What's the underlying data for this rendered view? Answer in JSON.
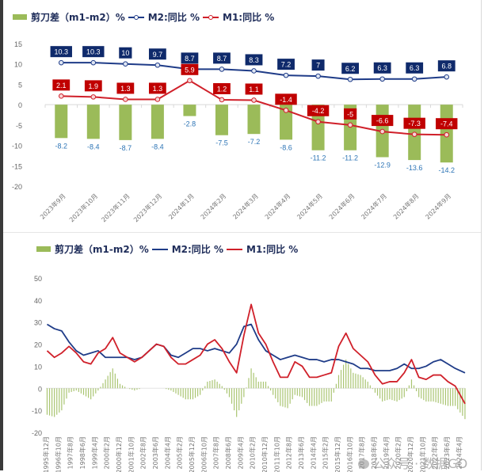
{
  "chart_data": [
    {
      "type": "bar",
      "title": "",
      "xlabel": "",
      "ylabel": "",
      "ylim": [
        -20,
        15
      ],
      "yticks": [
        15,
        10,
        5,
        0,
        -5,
        -10,
        -15,
        -20
      ],
      "grid": false,
      "legend_position": "top-left",
      "categories": [
        "2023年9月",
        "2023年10月",
        "2023年11月",
        "2023年12月",
        "2024年1月",
        "2024年2月",
        "2024年3月",
        "2024年4月",
        "2024年5月",
        "2024年6月",
        "2024年7月",
        "2024年8月",
        "2024年9月"
      ],
      "series": [
        {
          "name": "剪刀差（m1-m2）%",
          "kind": "bar",
          "color": "#9bbb59",
          "label_color": "#2e75b6",
          "values": [
            -8.2,
            -8.4,
            -8.7,
            -8.4,
            -2.8,
            -7.5,
            -7.2,
            -8.6,
            -11.2,
            -11.2,
            -12.9,
            -13.6,
            -14.2
          ],
          "labels": [
            "-8.2",
            "-8.4",
            "-8.7",
            "-8.4",
            "-2.8",
            "-7.5",
            "-7.2",
            "-8.6",
            "-11.2",
            "-11.2",
            "-12.9",
            "-13.6",
            "-14.2"
          ]
        },
        {
          "name": "M2:同比 %",
          "kind": "line",
          "color": "#1f3c88",
          "label_bg": "#0f2a6b",
          "values": [
            10.3,
            10.3,
            10.0,
            9.7,
            8.7,
            8.7,
            8.3,
            7.2,
            7.0,
            6.2,
            6.3,
            6.3,
            6.8
          ],
          "labels": [
            "10.3",
            "10.3",
            "10",
            "9.7",
            "8.7",
            "8.7",
            "8.3",
            "7.2",
            "7",
            "6.2",
            "6.3",
            "6.3",
            "6.8"
          ]
        },
        {
          "name": "M1:同比 %",
          "kind": "line",
          "color": "#d0202a",
          "label_bg": "#c00000",
          "values": [
            2.1,
            1.9,
            1.3,
            1.3,
            5.9,
            1.2,
            1.1,
            -1.4,
            -4.2,
            -5.0,
            -6.6,
            -7.3,
            -7.4
          ],
          "labels": [
            "2.1",
            "1.9",
            "1.3",
            "1.3",
            "5.9",
            "1.2",
            "1.1",
            "-1.4",
            "-4.2",
            "-5",
            "-6.6",
            "-7.3",
            "-7.4"
          ]
        }
      ]
    },
    {
      "type": "line",
      "title": "",
      "xlabel": "",
      "ylabel": "",
      "ylim": [
        -20,
        50
      ],
      "yticks": [
        50,
        40,
        30,
        20,
        10,
        0,
        -10,
        -20
      ],
      "grid": false,
      "legend_position": "top-left",
      "x_tick_labels": [
        "1995年12月",
        "1996年10月",
        "1997年8月",
        "1998年6月",
        "1999年4月",
        "2000年2月",
        "2000年12月",
        "2001年10月",
        "2002年8月",
        "2003年6月",
        "2004年4月",
        "2005年2月",
        "2005年12月",
        "2006年10月",
        "2007年8月",
        "2008年6月",
        "2009年4月",
        "2010年2月",
        "2010年12月",
        "2011年10月",
        "2012年8月",
        "2013年6月",
        "2014年4月",
        "2015年2月",
        "2015年12月",
        "2016年10月",
        "2017年8月",
        "2018年6月",
        "2019年4月",
        "2020年2月",
        "2020年12月",
        "2021年10月",
        "2022年8月",
        "2023年6月",
        "2024年4月"
      ],
      "x_range": [
        1995.92,
        2024.67
      ],
      "x": [
        1996.0,
        1996.5,
        1997.0,
        1997.5,
        1998.0,
        1998.5,
        1999.0,
        1999.5,
        2000.0,
        2000.5,
        2001.0,
        2001.5,
        2002.0,
        2002.5,
        2003.0,
        2003.5,
        2004.0,
        2004.5,
        2005.0,
        2005.5,
        2006.0,
        2006.5,
        2007.0,
        2007.5,
        2008.0,
        2008.5,
        2009.0,
        2009.5,
        2010.0,
        2010.5,
        2011.0,
        2011.5,
        2012.0,
        2012.5,
        2013.0,
        2013.5,
        2014.0,
        2014.5,
        2015.0,
        2015.5,
        2016.0,
        2016.5,
        2017.0,
        2017.5,
        2018.0,
        2018.5,
        2019.0,
        2019.5,
        2020.0,
        2020.5,
        2021.0,
        2021.5,
        2022.0,
        2022.5,
        2023.0,
        2023.5,
        2024.0,
        2024.67
      ],
      "series": [
        {
          "name": "剪刀差（m1-m2）%",
          "kind": "bar",
          "color": "#9bbb59",
          "values": [
            -12,
            -13,
            -10,
            -2,
            -1,
            -3,
            -5,
            -1,
            4,
            9,
            2,
            0,
            -1,
            0,
            0,
            0,
            0,
            -1,
            -3,
            -5,
            -5,
            -3,
            3,
            4,
            1,
            -4,
            -13,
            -4,
            9,
            3,
            3,
            -3,
            -8,
            -9,
            -3,
            -4,
            -8,
            -8,
            -6,
            -6,
            6,
            13,
            7,
            6,
            3,
            -2,
            -6,
            -5,
            -6,
            -4,
            4,
            -4,
            -6,
            -6,
            -7,
            -8,
            -8,
            -14
          ]
        },
        {
          "name": "M2:同比 %",
          "kind": "line",
          "color": "#1f3c88",
          "values": [
            29,
            27,
            26,
            21,
            17,
            15,
            16,
            17,
            14,
            14,
            14,
            14,
            13,
            14,
            17,
            20,
            19,
            15,
            14,
            16,
            18,
            18,
            17,
            18,
            17,
            16,
            20,
            28,
            29,
            22,
            17,
            15,
            13,
            14,
            15,
            14,
            13,
            13,
            12,
            13,
            13,
            12,
            11,
            9,
            9,
            8,
            8,
            8,
            9,
            11,
            9,
            9,
            10,
            12,
            13,
            11,
            9,
            7
          ]
        },
        {
          "name": "M1:同比 %",
          "kind": "line",
          "color": "#d0202a",
          "values": [
            17,
            14,
            16,
            19,
            16,
            12,
            11,
            16,
            18,
            23,
            16,
            14,
            12,
            14,
            17,
            20,
            19,
            14,
            11,
            11,
            13,
            15,
            20,
            22,
            18,
            12,
            7,
            24,
            38,
            25,
            20,
            12,
            5,
            5,
            12,
            10,
            5,
            5,
            6,
            7,
            19,
            25,
            18,
            15,
            12,
            6,
            2,
            3,
            3,
            7,
            13,
            5,
            4,
            6,
            6,
            3,
            1,
            -7
          ]
        }
      ]
    }
  ],
  "legend_top": {
    "bar_label": "剪刀差（m1-m2）%",
    "m2_label": "M2:同比 %",
    "m1_label": "M1:同比 %"
  },
  "legend_bottom": {
    "bar_label": "剪刀差（m1-m2）%",
    "m2_label": "M2:同比 %",
    "m1_label": "M1:同比 %"
  },
  "watermark": "公众号 · 数据GO"
}
